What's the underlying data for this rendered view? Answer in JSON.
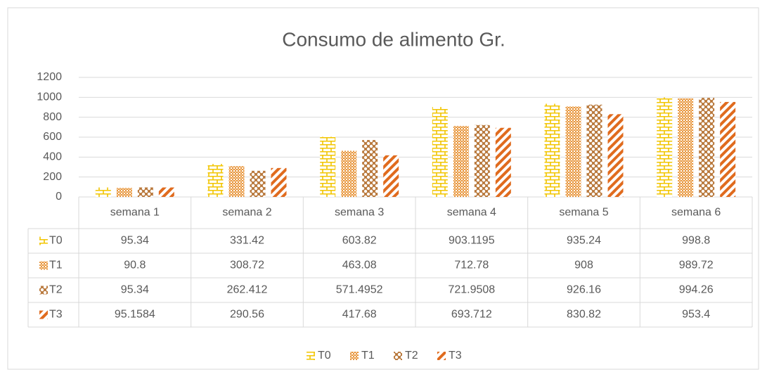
{
  "chart_data": {
    "type": "bar",
    "title": "Consumo de alimento Gr.",
    "categories": [
      "semana 1",
      "semana 2",
      "semana 3",
      "semana 4",
      "semana 5",
      "semana 6"
    ],
    "series": [
      {
        "name": "T0",
        "color": "#f2c500",
        "values": [
          95.34,
          331.42,
          603.82,
          903.1195,
          935.24,
          998.8
        ]
      },
      {
        "name": "T1",
        "color": "#e8963c",
        "values": [
          90.8,
          308.72,
          463.08,
          712.78,
          908,
          989.72
        ]
      },
      {
        "name": "T2",
        "color": "#b8773a",
        "values": [
          95.34,
          262.412,
          571.4952,
          721.9508,
          926.16,
          994.26
        ]
      },
      {
        "name": "T3",
        "color": "#e06b1e",
        "values": [
          95.1584,
          290.56,
          417.68,
          693.712,
          830.82,
          953.4
        ]
      }
    ],
    "ylim": [
      0,
      1200
    ],
    "yticks": [
      0,
      200,
      400,
      600,
      800,
      1000,
      1200
    ],
    "grid": true,
    "legend": "bottom"
  }
}
